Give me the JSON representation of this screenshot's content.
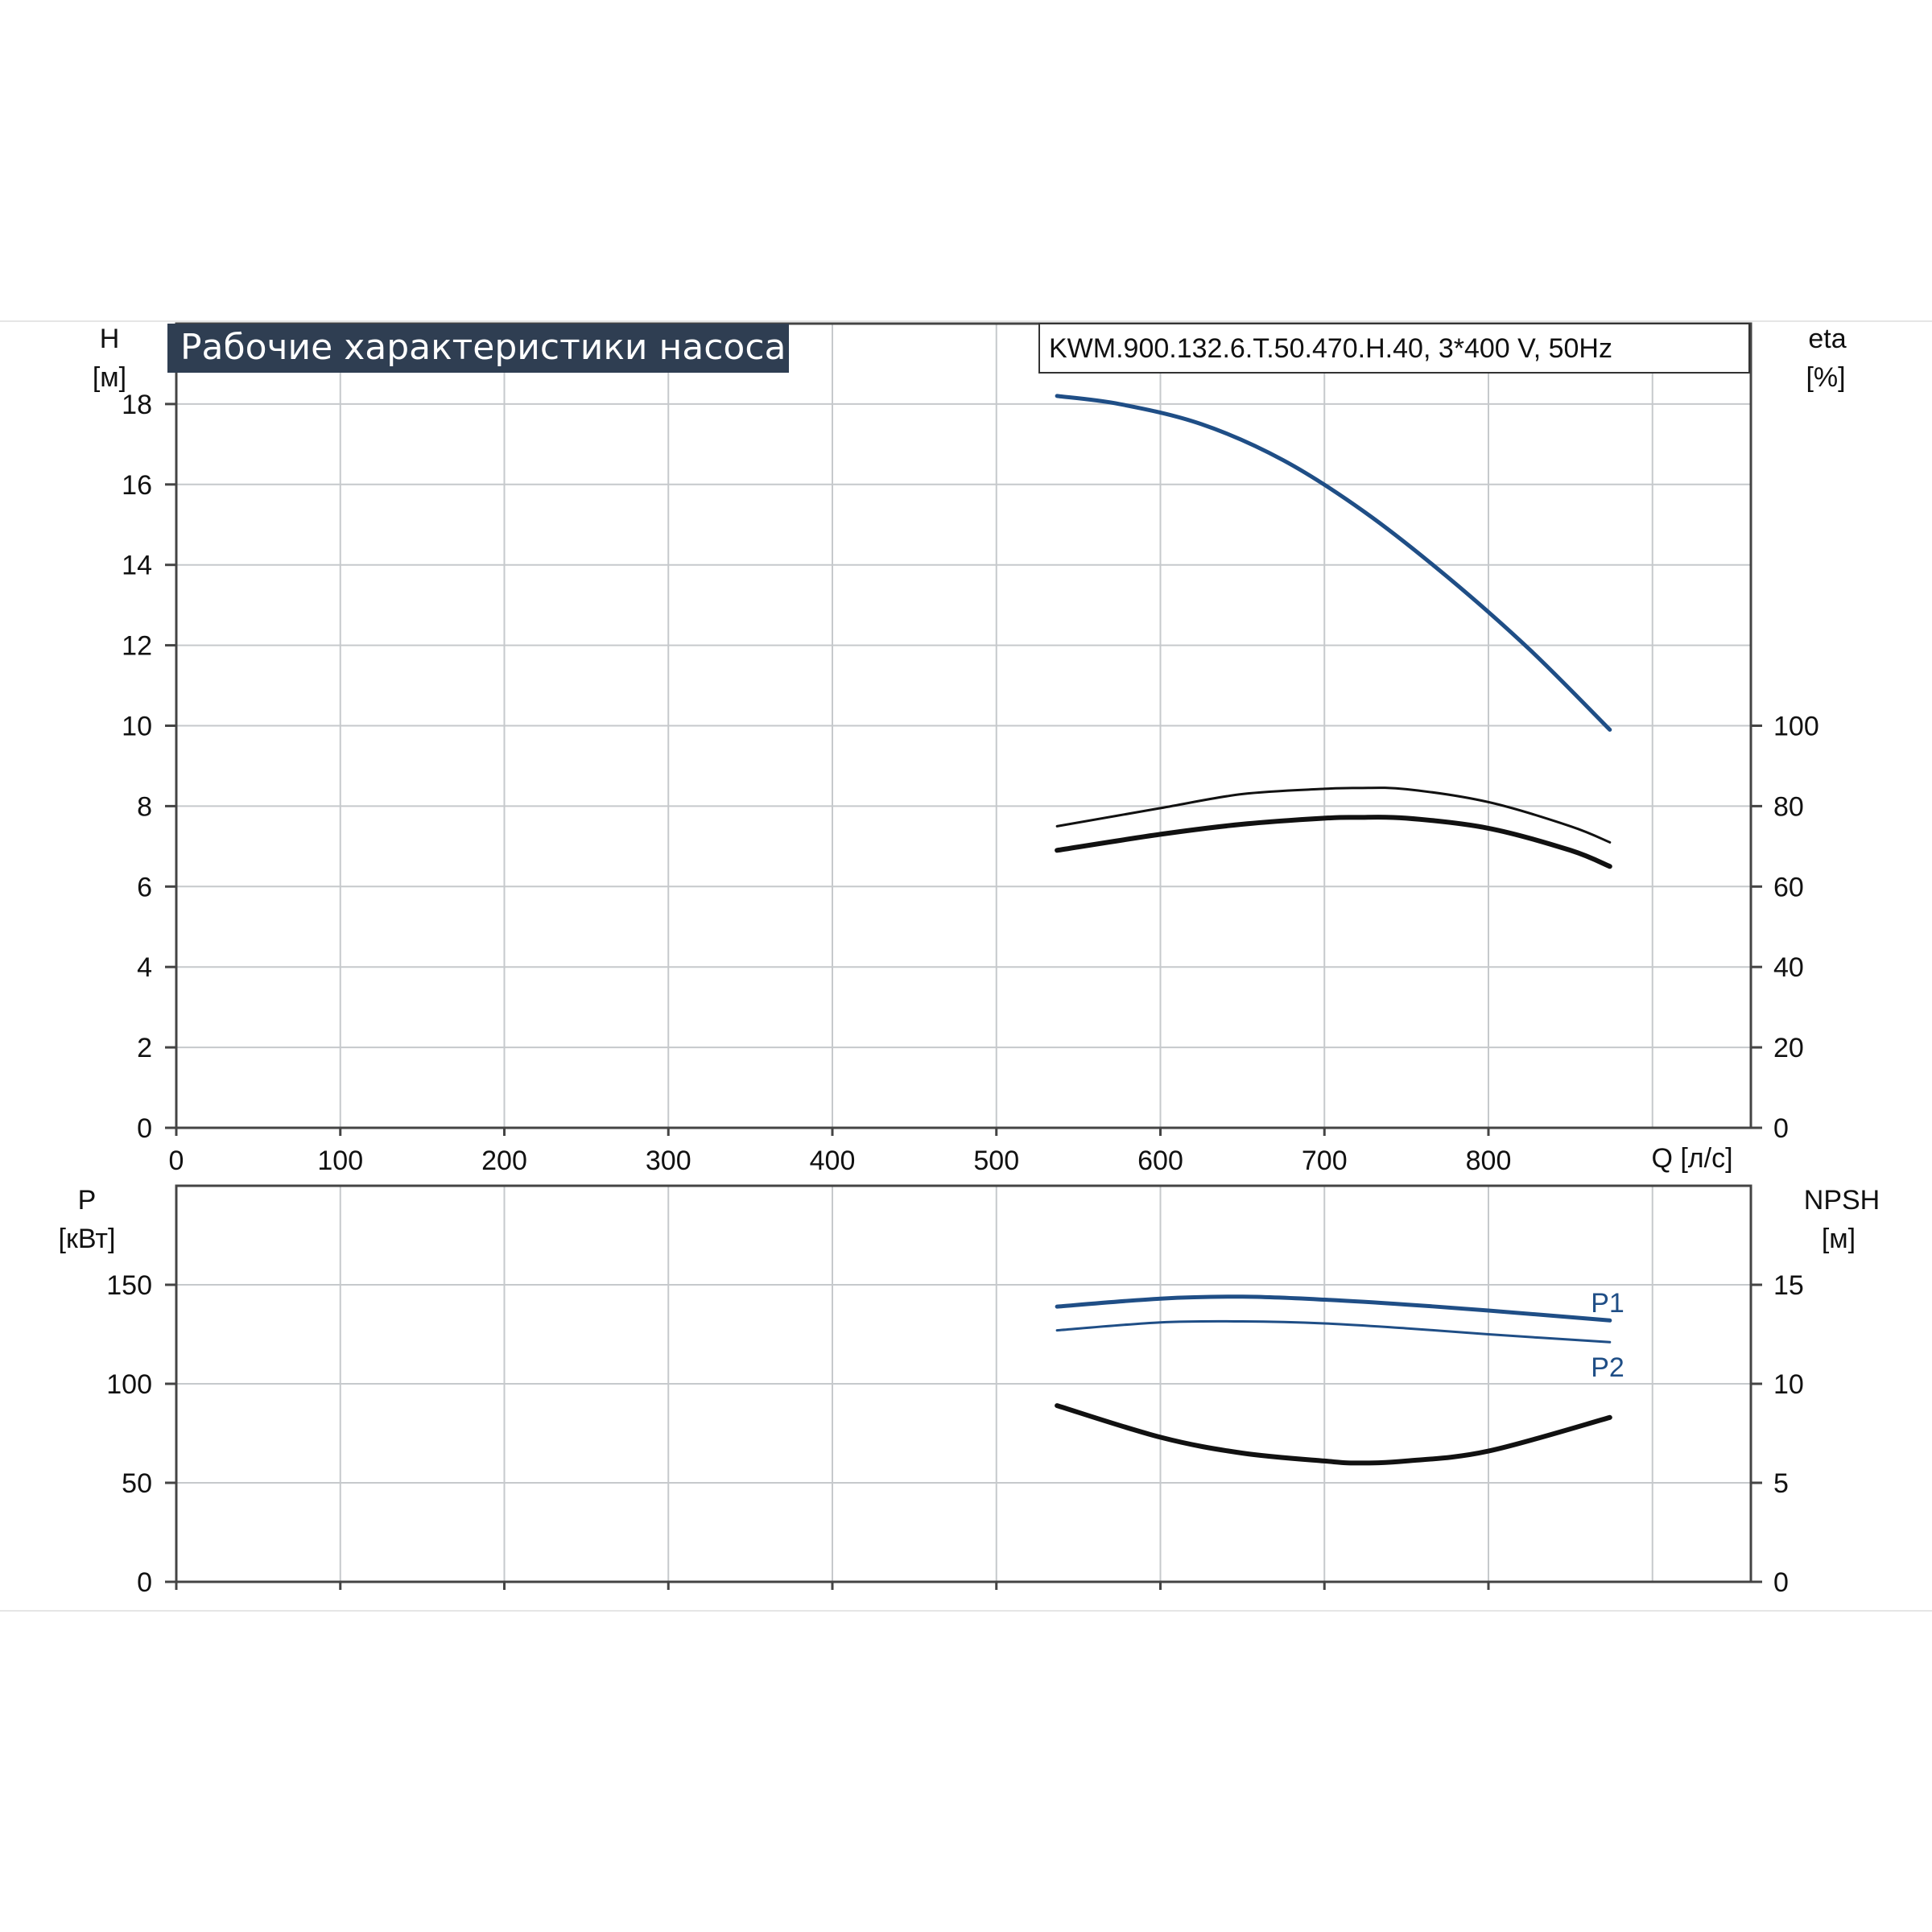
{
  "header": {
    "title": "Рабочие характеристики насоса",
    "model": "KWM.900.132.6.T.50.470.H.40, 3*400 V, 50Hz"
  },
  "colors": {
    "blue": "#1f4e86",
    "black": "#111111",
    "title_bg": "#2f3e52",
    "grid": "#c6c9cc"
  },
  "chart_data": [
    {
      "type": "line",
      "x_label": "Q [л/с]",
      "xlim": [
        0,
        960
      ],
      "x_ticks": [
        0,
        100,
        200,
        300,
        400,
        500,
        600,
        700,
        800
      ],
      "grid": true,
      "left_axis": {
        "label_line1": "H",
        "label_line2": "[м]",
        "ylim": [
          0,
          20
        ],
        "ticks": [
          0,
          2,
          4,
          6,
          8,
          10,
          12,
          14,
          16,
          18
        ]
      },
      "right_axis": {
        "label_line1": "eta",
        "label_line2": "[%]",
        "ylim": [
          0,
          200
        ],
        "ticks": [
          0,
          20,
          40,
          60,
          80,
          100
        ]
      },
      "series": [
        {
          "axis": "left",
          "color": "#1f4e86",
          "width": 5,
          "x": [
            537,
            575,
            625,
            675,
            725,
            775,
            825,
            874
          ],
          "y": [
            18.2,
            18.0,
            17.5,
            16.6,
            15.3,
            13.7,
            11.9,
            9.9
          ]
        },
        {
          "axis": "right",
          "color": "#111111",
          "width": 3,
          "x": [
            537,
            600,
            650,
            700,
            720,
            750,
            800,
            850,
            874
          ],
          "y": [
            75,
            79.5,
            83,
            84.3,
            84.5,
            84.2,
            81,
            75,
            71
          ]
        },
        {
          "axis": "right",
          "color": "#111111",
          "width": 6,
          "x": [
            537,
            600,
            650,
            700,
            720,
            750,
            800,
            850,
            874
          ],
          "y": [
            69,
            73,
            75.5,
            77,
            77.2,
            77,
            74.5,
            69,
            65
          ]
        }
      ]
    },
    {
      "type": "line",
      "xlim": [
        0,
        960
      ],
      "x_ticks": [
        0,
        100,
        200,
        300,
        400,
        500,
        600,
        700,
        800
      ],
      "grid": true,
      "left_axis": {
        "label_line1": "P",
        "label_line2": "[кВт]",
        "ylim": [
          0,
          200
        ],
        "ticks": [
          0,
          50,
          100,
          150
        ]
      },
      "right_axis": {
        "label_line1": "NPSH",
        "label_line2": "[м]",
        "ylim": [
          0,
          20
        ],
        "ticks": [
          0,
          5,
          10,
          15
        ]
      },
      "series": [
        {
          "name": "P1",
          "axis": "left",
          "color": "#1f4e86",
          "width": 5,
          "x": [
            537,
            600,
            650,
            700,
            750,
            800,
            874
          ],
          "y": [
            139,
            143,
            144,
            142.5,
            140,
            137,
            132
          ]
        },
        {
          "name": "P2",
          "axis": "left",
          "color": "#1f4e86",
          "width": 3,
          "x": [
            537,
            600,
            650,
            700,
            750,
            800,
            874
          ],
          "y": [
            127,
            131,
            131.5,
            130.5,
            128,
            125,
            121
          ]
        },
        {
          "axis": "right",
          "color": "#111111",
          "width": 6,
          "x": [
            537,
            600,
            650,
            700,
            720,
            750,
            800,
            874
          ],
          "y": [
            8.9,
            7.3,
            6.5,
            6.1,
            6.0,
            6.1,
            6.6,
            8.3
          ]
        }
      ]
    }
  ]
}
